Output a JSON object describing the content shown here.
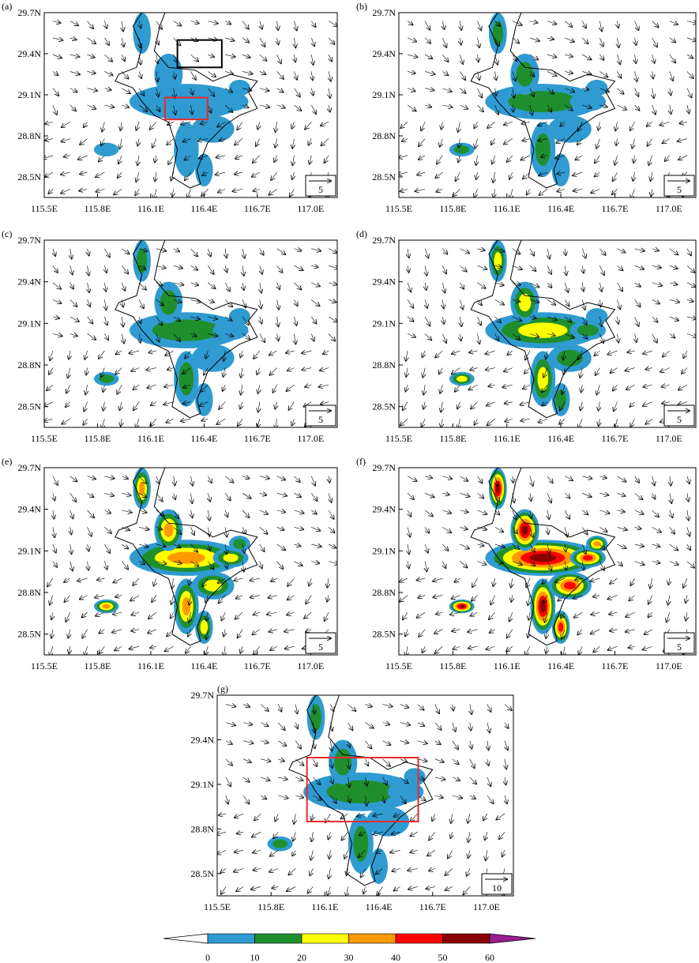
{
  "chart_data": {
    "type": "map",
    "x_ticks": [
      "115.5E",
      "115.8E",
      "116.1E",
      "116.4E",
      "116.7E",
      "117.0E"
    ],
    "y_ticks": [
      "29.7N",
      "29.4N",
      "29.1N",
      "28.8N",
      "28.5N"
    ],
    "xlim": [
      115.5,
      117.15
    ],
    "ylim": [
      28.35,
      29.7
    ],
    "colorbar": {
      "levels": [
        "0",
        "10",
        "20",
        "30",
        "40",
        "50",
        "60"
      ],
      "colors": [
        "#ffffff",
        "#2f9bd1",
        "#1f8f2e",
        "#ffff00",
        "#ff9900",
        "#ff0000",
        "#8b0000",
        "#9b1d8f"
      ]
    },
    "panels": [
      {
        "label": "(a)",
        "ref_vector": "5",
        "intensity": 0.15,
        "boxes": [
          {
            "color": "#000000",
            "lon": [
              116.25,
              116.5
            ],
            "lat": [
              29.3,
              29.5
            ]
          },
          {
            "color": "#e8292b",
            "lon": [
              116.18,
              116.42
            ],
            "lat": [
              28.92,
              29.08
            ]
          }
        ]
      },
      {
        "label": "(b)",
        "ref_vector": "5",
        "intensity": 0.25,
        "boxes": []
      },
      {
        "label": "(c)",
        "ref_vector": "5",
        "intensity": 0.32,
        "boxes": []
      },
      {
        "label": "(d)",
        "ref_vector": "5",
        "intensity": 0.55,
        "boxes": []
      },
      {
        "label": "(e)",
        "ref_vector": "5",
        "intensity": 0.72,
        "boxes": []
      },
      {
        "label": "(f)",
        "ref_vector": "5",
        "intensity": 0.92,
        "boxes": []
      },
      {
        "label": "(g)",
        "ref_vector": "10",
        "intensity": 0.4,
        "boxes": [
          {
            "color": "#e8292b",
            "lon": [
              116.0,
              116.62
            ],
            "lat": [
              28.85,
              29.28
            ]
          }
        ]
      }
    ]
  }
}
